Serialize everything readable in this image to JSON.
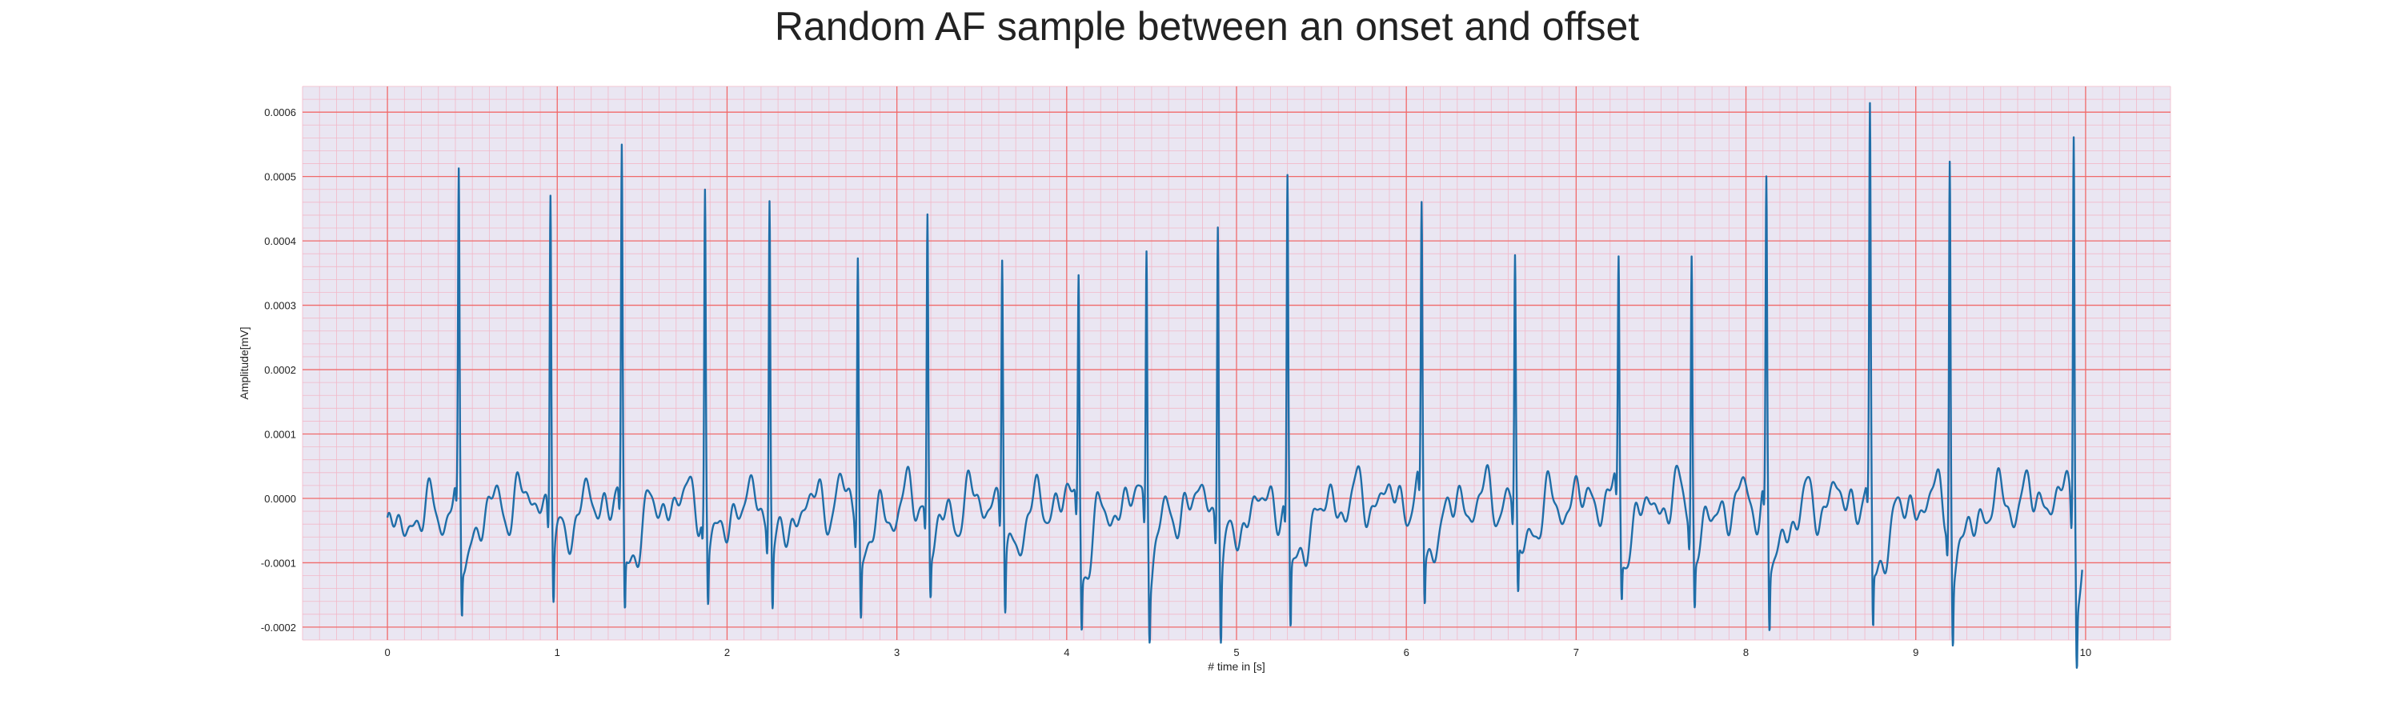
{
  "chart_data": {
    "type": "line",
    "title": "Random AF sample between an onset and offset",
    "xlabel": "# time in [s]",
    "ylabel": "Amplitude[mV]",
    "xlim": [
      -0.5,
      10.5
    ],
    "ylim": [
      -0.00022,
      0.00064
    ],
    "xticks": [
      0,
      1,
      2,
      3,
      4,
      5,
      6,
      7,
      8,
      9,
      10
    ],
    "xtick_labels": [
      "0",
      "1",
      "2",
      "3",
      "4",
      "5",
      "6",
      "7",
      "8",
      "9",
      "10"
    ],
    "yticks": [
      -0.0002,
      -0.0001,
      0.0,
      0.0001,
      0.0002,
      0.0003,
      0.0004,
      0.0005,
      0.0006
    ],
    "ytick_labels": [
      "-0.0002",
      "-0.0001",
      "0.0000",
      "0.0001",
      "0.0002",
      "0.0003",
      "0.0004",
      "0.0005",
      "0.0006"
    ],
    "grid": true,
    "minor_grid": true,
    "colors": {
      "background": "#eae6f2",
      "major_grid": "#f06a6a",
      "minor_grid": "#f2b8c8",
      "line": "#1f6ea8"
    },
    "series": [
      {
        "x_start": 0.0,
        "x_end": 9.98,
        "beats": [
          {
            "t": 0.42,
            "peak": 0.00047,
            "trough": -0.000145
          },
          {
            "t": 0.96,
            "peak": 0.00049,
            "trough": -0.00013
          },
          {
            "t": 1.38,
            "peak": 0.00052,
            "trough": -0.000155
          },
          {
            "t": 1.87,
            "peak": 0.000485,
            "trough": -0.000135
          },
          {
            "t": 2.25,
            "peak": 0.00049,
            "trough": -0.000145
          },
          {
            "t": 2.77,
            "peak": 0.0004,
            "trough": -0.000145
          },
          {
            "t": 3.18,
            "peak": 0.000445,
            "trough": -0.000115
          },
          {
            "t": 3.62,
            "peak": 0.000385,
            "trough": -0.00015
          },
          {
            "t": 4.07,
            "peak": 0.000345,
            "trough": -0.00015
          },
          {
            "t": 4.47,
            "peak": 0.000415,
            "trough": -0.000135
          },
          {
            "t": 4.89,
            "peak": 0.000465,
            "trough": -0.000165
          },
          {
            "t": 5.3,
            "peak": 0.000485,
            "trough": -0.000185
          },
          {
            "t": 6.09,
            "peak": 0.000425,
            "trough": -0.000135
          },
          {
            "t": 6.64,
            "peak": 0.000365,
            "trough": -0.000135
          },
          {
            "t": 7.25,
            "peak": 0.00035,
            "trough": -0.000115
          },
          {
            "t": 7.68,
            "peak": 0.000405,
            "trough": -0.000125
          },
          {
            "t": 8.12,
            "peak": 0.000475,
            "trough": -0.00017
          },
          {
            "t": 8.73,
            "peak": 0.00057,
            "trough": -0.000175
          },
          {
            "t": 9.2,
            "peak": 0.000555,
            "trough": -0.00017
          },
          {
            "t": 9.93,
            "peak": 0.0006,
            "trough": -0.00017
          }
        ]
      }
    ]
  }
}
